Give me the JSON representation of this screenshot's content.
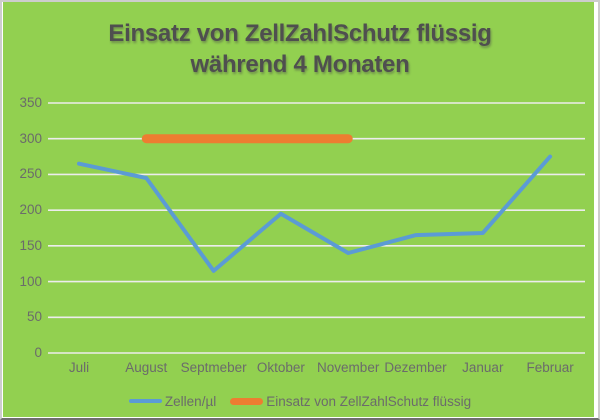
{
  "chart_data": {
    "type": "line",
    "title": "Einsatz von ZellZahlSchutz flüssig während 4 Monaten",
    "title_lines": [
      "Einsatz von ZellZahlSchutz flüssig",
      "während 4 Monaten"
    ],
    "categories": [
      "Juli",
      "August",
      "Septmeber",
      "Oktober",
      "November",
      "Dezember",
      "Januar",
      "Februar"
    ],
    "series": [
      {
        "name": "Zellen/µl",
        "color": "#5B9BD5",
        "line_width": 4,
        "values": [
          265,
          245,
          115,
          195,
          140,
          165,
          168,
          275
        ]
      },
      {
        "name": "Einsatz von ZellZahlSchutz flüssig",
        "color": "#ED7D31",
        "line_width": 9,
        "values": [
          null,
          300,
          300,
          300,
          300,
          null,
          null,
          null
        ]
      }
    ],
    "yticks": [
      0,
      50,
      100,
      150,
      200,
      250,
      300,
      350
    ],
    "ylim": [
      0,
      350
    ],
    "grid": true,
    "legend_position": "bottom",
    "colors": {
      "plot_background": "#92D050",
      "gridline": "#ECECEC",
      "tick_label": "#6B6B6B",
      "title": "#4F4F4F"
    }
  }
}
